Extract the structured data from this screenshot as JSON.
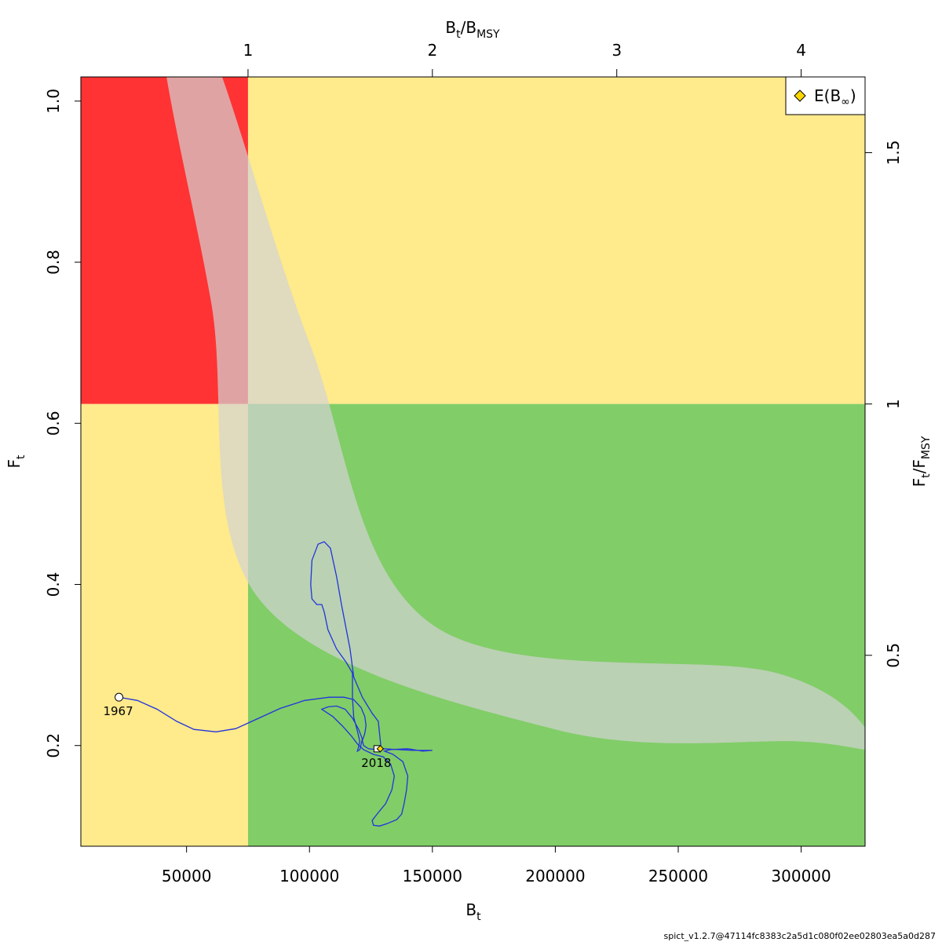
{
  "chart_data": {
    "type": "line",
    "xlim": [
      7000,
      326000
    ],
    "ylim": [
      0.075,
      1.03
    ],
    "x_ticks": [
      50000,
      100000,
      150000,
      200000,
      250000,
      300000
    ],
    "y_ticks": [
      0.2,
      0.4,
      0.6,
      0.8,
      1.0
    ],
    "y_tick_labels": [
      "0.2",
      "0.4",
      "0.6",
      "0.8",
      "1.0"
    ],
    "bmsy": 75000,
    "fmsy": 0.624,
    "top_ticks": [
      1,
      2,
      3,
      4
    ],
    "right_ticks": [
      0.5,
      1,
      1.5
    ],
    "xlabel": {
      "main": "B",
      "sub": "t"
    },
    "ylabel": {
      "main": "F",
      "sub": "t"
    },
    "top_label": {
      "a": "B",
      "a_sub": "t",
      "b": "/B",
      "b_sub": "MSY"
    },
    "right_label": {
      "a": "F",
      "a_sub": "t",
      "b": "/F",
      "b_sub": "MSY"
    },
    "zone_colors": {
      "red": "#ff3333",
      "yellow": "#ffea8c",
      "green": "#81cd68"
    },
    "ellipse_color": "#d3d3d3",
    "line_color": "#2233dd",
    "marker_color": "#ffd700",
    "legend": [
      {
        "label_main": "E(B",
        "label_sub": "∞",
        "label_end": ")",
        "marker": "diamond"
      }
    ],
    "start_label": "1967",
    "end_label": "2018",
    "trajectory": [
      [
        22500,
        0.26
      ],
      [
        30000,
        0.256
      ],
      [
        38000,
        0.245
      ],
      [
        46000,
        0.23
      ],
      [
        53000,
        0.22
      ],
      [
        62000,
        0.217
      ],
      [
        70000,
        0.221
      ],
      [
        78000,
        0.232
      ],
      [
        88000,
        0.246
      ],
      [
        98000,
        0.256
      ],
      [
        108000,
        0.26
      ],
      [
        114000,
        0.26
      ],
      [
        118000,
        0.257
      ],
      [
        121000,
        0.247
      ],
      [
        122500,
        0.236
      ],
      [
        123000,
        0.225
      ],
      [
        122500,
        0.215
      ],
      [
        121500,
        0.206
      ],
      [
        122000,
        0.2
      ],
      [
        124000,
        0.196
      ],
      [
        127000,
        0.195
      ],
      [
        130000,
        0.196
      ],
      [
        136000,
        0.195
      ],
      [
        142000,
        0.194
      ],
      [
        150000,
        0.194
      ],
      [
        146000,
        0.193
      ],
      [
        140000,
        0.196
      ],
      [
        133000,
        0.195
      ],
      [
        130500,
        0.193
      ],
      [
        134000,
        0.189
      ],
      [
        138000,
        0.18
      ],
      [
        140000,
        0.162
      ],
      [
        139500,
        0.145
      ],
      [
        138500,
        0.128
      ],
      [
        137500,
        0.115
      ],
      [
        135500,
        0.108
      ],
      [
        131500,
        0.103
      ],
      [
        128500,
        0.1
      ],
      [
        126000,
        0.101
      ],
      [
        125500,
        0.107
      ],
      [
        127500,
        0.115
      ],
      [
        131000,
        0.128
      ],
      [
        133500,
        0.145
      ],
      [
        134500,
        0.162
      ],
      [
        133000,
        0.177
      ],
      [
        130000,
        0.186
      ],
      [
        126000,
        0.189
      ],
      [
        122000,
        0.195
      ],
      [
        119500,
        0.202
      ],
      [
        117000,
        0.212
      ],
      [
        113500,
        0.224
      ],
      [
        109500,
        0.236
      ],
      [
        105000,
        0.245
      ],
      [
        107500,
        0.248
      ],
      [
        111000,
        0.249
      ],
      [
        114500,
        0.245
      ],
      [
        117500,
        0.234
      ],
      [
        120000,
        0.22
      ],
      [
        121500,
        0.208
      ],
      [
        120500,
        0.195
      ],
      [
        119500,
        0.193
      ],
      [
        120500,
        0.205
      ],
      [
        119500,
        0.218
      ],
      [
        118000,
        0.235
      ],
      [
        117500,
        0.26
      ],
      [
        117500,
        0.29
      ],
      [
        115000,
        0.303
      ],
      [
        111000,
        0.32
      ],
      [
        107500,
        0.344
      ],
      [
        106000,
        0.366
      ],
      [
        105000,
        0.375
      ],
      [
        103000,
        0.375
      ],
      [
        101000,
        0.382
      ],
      [
        100500,
        0.4
      ],
      [
        101000,
        0.43
      ],
      [
        103500,
        0.45
      ],
      [
        106000,
        0.453
      ],
      [
        108500,
        0.445
      ],
      [
        111000,
        0.41
      ],
      [
        113000,
        0.375
      ],
      [
        116500,
        0.32
      ],
      [
        118000,
        0.285
      ],
      [
        121500,
        0.26
      ],
      [
        125500,
        0.24
      ],
      [
        128000,
        0.23
      ],
      [
        129000,
        0.2
      ],
      [
        127500,
        0.196
      ]
    ],
    "ellipse_ctrl": [
      [
        40000,
        1.08
      ],
      [
        60000,
        0.75
      ],
      [
        80000,
        0.38
      ],
      [
        200000,
        0.22
      ],
      [
        300000,
        0.205
      ],
      [
        330000,
        0.2
      ],
      [
        290000,
        0.29
      ],
      [
        150000,
        0.35
      ],
      [
        100000,
        0.7
      ],
      [
        58000,
        1.08
      ]
    ]
  },
  "footer": "spict_v1.2.7@47114fc8383c2a5d1c080f02ee02803ea5a0d287"
}
